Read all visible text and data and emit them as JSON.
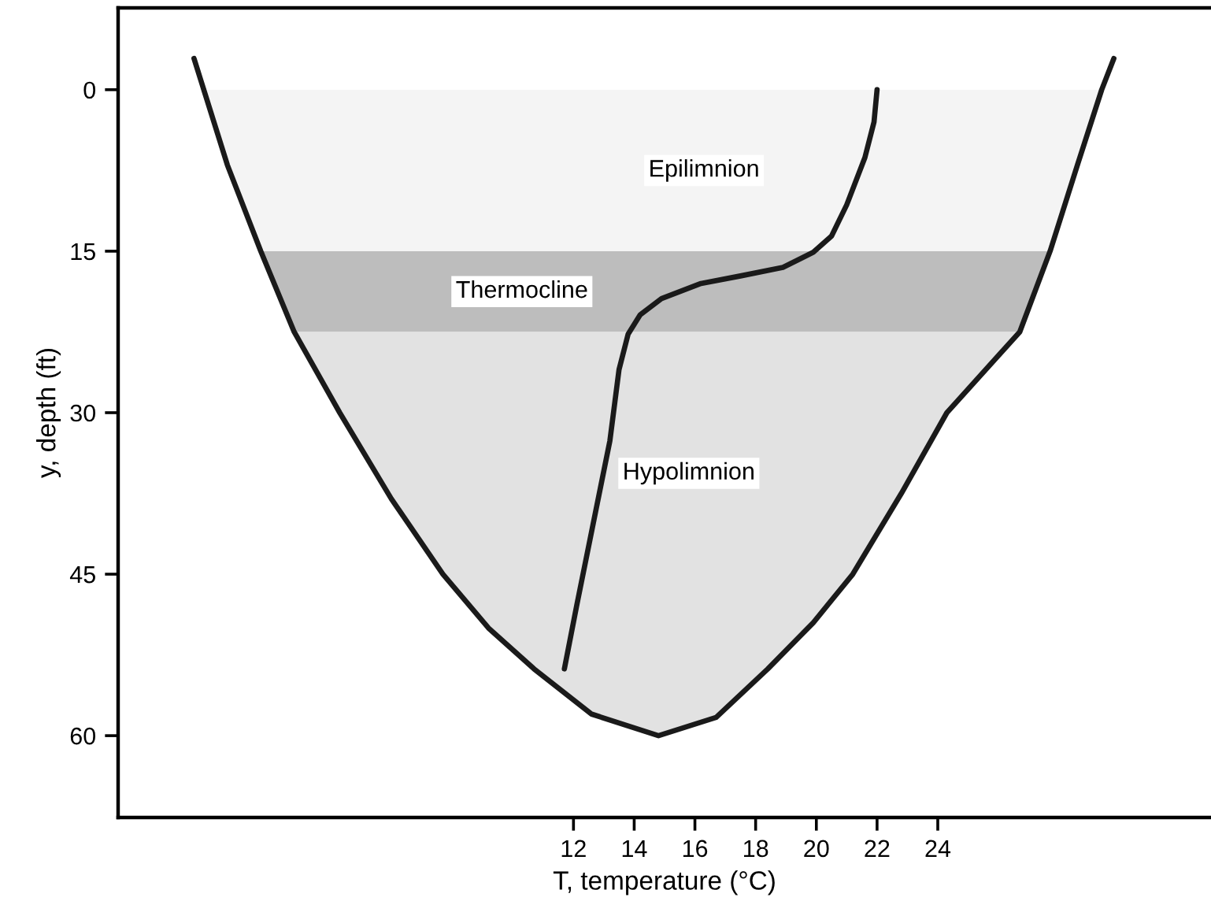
{
  "chart_data": {
    "type": "line",
    "xlabel": "T, temperature (°C)",
    "ylabel": "y, depth (ft)",
    "xlim": [
      -3,
      33
    ],
    "ylim": [
      67.6,
      -7.6
    ],
    "xticks": [
      12,
      14,
      16,
      18,
      20,
      22,
      24
    ],
    "yticks": [
      0,
      15,
      30,
      45,
      60
    ],
    "grid": false,
    "legend": false,
    "marker": "none",
    "line_style": "solid",
    "series": [
      {
        "color": "#1a1a1a",
        "x": [
          -0.5,
          0.6,
          1.7,
          2.8,
          4.3,
          6.0,
          7.7,
          9.2,
          10.7,
          12.6,
          14.8,
          16.7,
          18.4,
          19.9,
          21.2,
          22.8,
          24.3,
          26.7,
          27.7,
          28.6,
          29.4,
          29.8
        ],
        "values": [
          -2.9,
          7,
          15,
          22.5,
          30,
          38,
          45,
          50,
          53.8,
          58,
          60,
          58.3,
          53.8,
          49.5,
          45,
          37.5,
          30,
          22.5,
          15,
          7,
          0,
          -2.9
        ]
      },
      {
        "color": "#1a1a1a",
        "x": [
          22.0,
          21.9,
          21.6,
          21.0,
          20.5,
          19.9,
          18.9,
          17.5,
          16.2,
          14.9,
          14.2,
          13.8,
          13.5,
          13.2,
          12.6,
          12.1,
          11.7
        ],
        "values": [
          0,
          3,
          6.3,
          10.7,
          13.6,
          15.1,
          16.5,
          17.3,
          18,
          19.4,
          20.9,
          22.7,
          26,
          32.6,
          41,
          48,
          53.8
        ]
      }
    ],
    "bands": [
      {
        "axis": "y",
        "from": 0,
        "to": 15,
        "label": "Epilimnion",
        "color": "#f4f4f4"
      },
      {
        "axis": "y",
        "from": 15,
        "to": 22.5,
        "label": "Thermocline",
        "color": "#bdbdbd"
      },
      {
        "axis": "y",
        "from": 22.5,
        "to": 60,
        "label": "Hypolimnion",
        "color": "#e2e2e2"
      }
    ]
  }
}
